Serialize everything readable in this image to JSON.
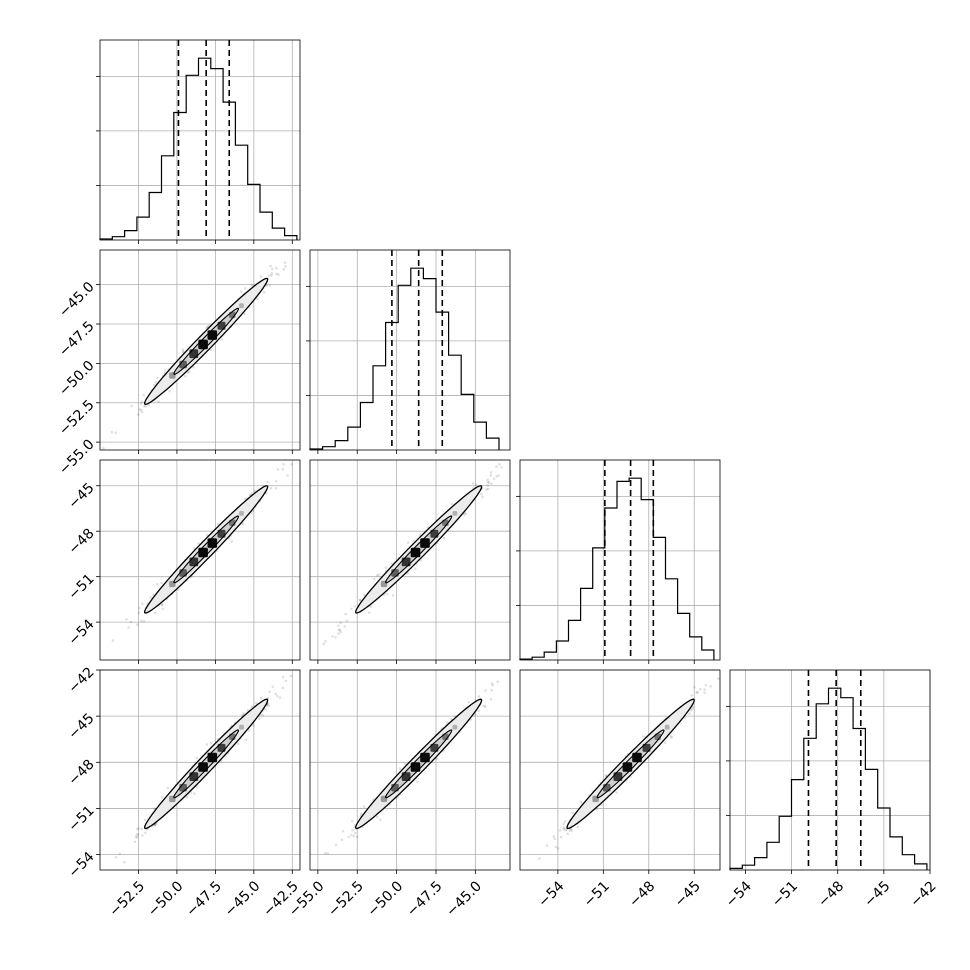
{
  "chart_data": {
    "type": "corner",
    "n_params": 4,
    "grid": true,
    "colors": {
      "ink": "#000000",
      "grid": "#b0b0b0",
      "fill_outer": "#ececec",
      "fill_mid": "#cfcfcf"
    },
    "params": [
      {
        "range": [
          -55,
          -42
        ],
        "ticks": [
          -52.5,
          -50.0,
          -47.5,
          -45.0,
          -42.5
        ],
        "tick_labels": [
          "−52.5",
          "−50.0",
          "−47.5",
          "−45.0",
          "−42.5"
        ],
        "mean": -48.1,
        "sigma": 2.0,
        "quantiles": [
          -49.9,
          -48.1,
          -46.6
        ]
      },
      {
        "range": [
          -55.5,
          -42.8
        ],
        "ticks": [
          -55.0,
          -52.5,
          -50.0,
          -47.5,
          -45.0
        ],
        "tick_labels": [
          "−55.0",
          "−52.5",
          "−50.0",
          "−47.5",
          "−45.0"
        ],
        "mean": -48.6,
        "sigma": 2.0,
        "quantiles": [
          -50.3,
          -48.6,
          -47.1
        ]
      },
      {
        "range": [
          -56.5,
          -43.3
        ],
        "ticks": [
          -54,
          -51,
          -48,
          -45
        ],
        "tick_labels": [
          "−54",
          "−51",
          "−48",
          "−45"
        ],
        "mean": -49.2,
        "sigma": 2.1,
        "quantiles": [
          -50.9,
          -49.2,
          -47.7
        ]
      },
      {
        "range": [
          -55,
          -42
        ],
        "ticks": [
          -54,
          -51,
          -48,
          -45,
          -42
        ],
        "tick_labels": [
          "−54",
          "−51",
          "−48",
          "−45",
          "−42"
        ],
        "mean": -48.1,
        "sigma": 2.1,
        "quantiles": [
          -49.9,
          -48.1,
          -46.5
        ]
      }
    ],
    "hist_bin_width": 0.8,
    "hist_ylim_factor": 1.1,
    "hist_yticks_fraction": [
      0.3,
      0.6,
      0.9
    ],
    "correlation": 0.985,
    "xlabels": [
      "",
      "",
      "",
      ""
    ],
    "ylabels": [
      "",
      "",
      "",
      ""
    ]
  }
}
